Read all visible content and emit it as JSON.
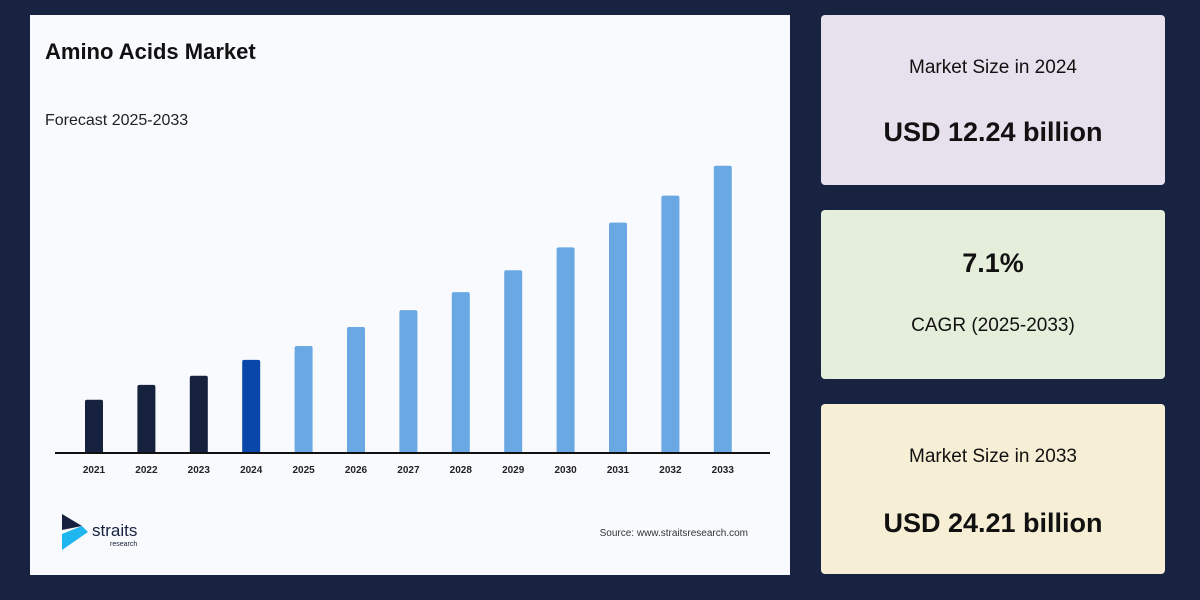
{
  "header": {
    "title": "Amino Acids Market",
    "subtitle": "Forecast 2025-2033"
  },
  "footer": {
    "source": "Source: www.straitsresearch.com",
    "logo_text": "straits research"
  },
  "cards": [
    {
      "label": "Market Size in 2024",
      "value": "USD 12.24 billion",
      "color": "#e6e1ec"
    },
    {
      "value": "7.1%",
      "label": "CAGR (2025-2033)",
      "color": "#e4eedb"
    },
    {
      "label": "Market Size in 2033",
      "value": "USD 24.21 billion",
      "color": "#f7efd5"
    }
  ],
  "colors": {
    "background": "#172341",
    "historic": "#16213e",
    "base_year": "#0a47ab",
    "forecast": "#6aa8e4"
  },
  "chart_data": {
    "type": "bar",
    "title": "Amino Acids Market",
    "subtitle": "Forecast 2025-2033",
    "xlabel": "",
    "ylabel": "",
    "categories": [
      "2021",
      "2022",
      "2023",
      "2024",
      "2025",
      "2026",
      "2027",
      "2028",
      "2029",
      "2030",
      "2031",
      "2032",
      "2033"
    ],
    "values": [
      9.78,
      10.7,
      11.26,
      12.24,
      13.1,
      14.27,
      15.31,
      16.42,
      17.77,
      19.18,
      20.71,
      22.37,
      24.21
    ],
    "bar_groups": [
      "historic",
      "historic",
      "historic",
      "base_year",
      "forecast",
      "forecast",
      "forecast",
      "forecast",
      "forecast",
      "forecast",
      "forecast",
      "forecast",
      "forecast"
    ],
    "ylim": [
      6.5,
      25
    ],
    "grid": false,
    "unit": "USD billion"
  }
}
